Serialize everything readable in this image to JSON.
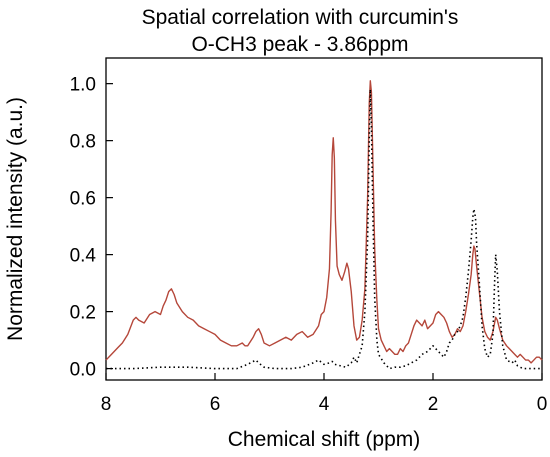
{
  "chart_data": {
    "type": "line",
    "title": [
      "Spatial correlation with curcumin's",
      "O-CH3 peak -  3.86ppm"
    ],
    "xlabel": "Chemical shift (ppm)",
    "ylabel": "Normalized intensity (a.u.)",
    "xlim": [
      8,
      0
    ],
    "ylim": [
      -0.04,
      1.09
    ],
    "x_reversed": true,
    "xticks": [
      8,
      6,
      4,
      2,
      0
    ],
    "xtick_labels": [
      "8",
      "6",
      "4",
      "2",
      "0"
    ],
    "yticks": [
      0.0,
      0.2,
      0.4,
      0.6,
      0.8,
      1.0
    ],
    "ytick_labels": [
      "0.0",
      "0.2",
      "0.4",
      "0.6",
      "0.8",
      "1.0"
    ],
    "grid": false,
    "legend": "none",
    "series": [
      {
        "style": "solid",
        "color": "#b5473a",
        "points": [
          [
            8.0,
            0.03
          ],
          [
            7.9,
            0.05
          ],
          [
            7.8,
            0.07
          ],
          [
            7.7,
            0.09
          ],
          [
            7.6,
            0.12
          ],
          [
            7.5,
            0.17
          ],
          [
            7.45,
            0.18
          ],
          [
            7.4,
            0.17
          ],
          [
            7.3,
            0.16
          ],
          [
            7.2,
            0.19
          ],
          [
            7.1,
            0.2
          ],
          [
            7.0,
            0.19
          ],
          [
            6.95,
            0.22
          ],
          [
            6.9,
            0.24
          ],
          [
            6.85,
            0.27
          ],
          [
            6.8,
            0.28
          ],
          [
            6.75,
            0.26
          ],
          [
            6.7,
            0.23
          ],
          [
            6.6,
            0.2
          ],
          [
            6.5,
            0.18
          ],
          [
            6.4,
            0.17
          ],
          [
            6.3,
            0.15
          ],
          [
            6.2,
            0.14
          ],
          [
            6.1,
            0.13
          ],
          [
            6.0,
            0.12
          ],
          [
            5.9,
            0.1
          ],
          [
            5.8,
            0.09
          ],
          [
            5.7,
            0.08
          ],
          [
            5.6,
            0.08
          ],
          [
            5.5,
            0.09
          ],
          [
            5.45,
            0.08
          ],
          [
            5.4,
            0.08
          ],
          [
            5.3,
            0.11
          ],
          [
            5.25,
            0.13
          ],
          [
            5.2,
            0.14
          ],
          [
            5.15,
            0.12
          ],
          [
            5.1,
            0.09
          ],
          [
            5.0,
            0.08
          ],
          [
            4.9,
            0.09
          ],
          [
            4.8,
            0.1
          ],
          [
            4.7,
            0.11
          ],
          [
            4.6,
            0.1
          ],
          [
            4.5,
            0.12
          ],
          [
            4.4,
            0.13
          ],
          [
            4.3,
            0.11
          ],
          [
            4.2,
            0.12
          ],
          [
            4.1,
            0.15
          ],
          [
            4.05,
            0.19
          ],
          [
            4.0,
            0.2
          ],
          [
            3.95,
            0.25
          ],
          [
            3.9,
            0.35
          ],
          [
            3.87,
            0.55
          ],
          [
            3.85,
            0.75
          ],
          [
            3.83,
            0.81
          ],
          [
            3.81,
            0.74
          ],
          [
            3.79,
            0.52
          ],
          [
            3.76,
            0.36
          ],
          [
            3.72,
            0.33
          ],
          [
            3.67,
            0.31
          ],
          [
            3.62,
            0.34
          ],
          [
            3.58,
            0.37
          ],
          [
            3.55,
            0.35
          ],
          [
            3.5,
            0.27
          ],
          [
            3.45,
            0.15
          ],
          [
            3.4,
            0.1
          ],
          [
            3.35,
            0.11
          ],
          [
            3.3,
            0.17
          ],
          [
            3.25,
            0.28
          ],
          [
            3.2,
            0.6
          ],
          [
            3.17,
            0.93
          ],
          [
            3.15,
            1.01
          ],
          [
            3.13,
            0.97
          ],
          [
            3.1,
            0.7
          ],
          [
            3.07,
            0.42
          ],
          [
            3.03,
            0.24
          ],
          [
            3.0,
            0.14
          ],
          [
            2.95,
            0.1
          ],
          [
            2.9,
            0.08
          ],
          [
            2.85,
            0.06
          ],
          [
            2.8,
            0.07
          ],
          [
            2.75,
            0.06
          ],
          [
            2.7,
            0.05
          ],
          [
            2.65,
            0.05
          ],
          [
            2.6,
            0.07
          ],
          [
            2.55,
            0.06
          ],
          [
            2.5,
            0.08
          ],
          [
            2.45,
            0.09
          ],
          [
            2.4,
            0.12
          ],
          [
            2.35,
            0.15
          ],
          [
            2.3,
            0.17
          ],
          [
            2.25,
            0.16
          ],
          [
            2.2,
            0.15
          ],
          [
            2.15,
            0.17
          ],
          [
            2.1,
            0.14
          ],
          [
            2.05,
            0.15
          ],
          [
            2.0,
            0.16
          ],
          [
            1.95,
            0.19
          ],
          [
            1.9,
            0.2
          ],
          [
            1.85,
            0.19
          ],
          [
            1.8,
            0.18
          ],
          [
            1.75,
            0.16
          ],
          [
            1.7,
            0.13
          ],
          [
            1.65,
            0.11
          ],
          [
            1.6,
            0.12
          ],
          [
            1.55,
            0.14
          ],
          [
            1.5,
            0.13
          ],
          [
            1.45,
            0.15
          ],
          [
            1.4,
            0.2
          ],
          [
            1.35,
            0.26
          ],
          [
            1.3,
            0.33
          ],
          [
            1.27,
            0.4
          ],
          [
            1.25,
            0.43
          ],
          [
            1.23,
            0.42
          ],
          [
            1.2,
            0.36
          ],
          [
            1.15,
            0.27
          ],
          [
            1.1,
            0.18
          ],
          [
            1.05,
            0.13
          ],
          [
            1.0,
            0.11
          ],
          [
            0.95,
            0.1
          ],
          [
            0.9,
            0.13
          ],
          [
            0.85,
            0.18
          ],
          [
            0.82,
            0.17
          ],
          [
            0.78,
            0.14
          ],
          [
            0.72,
            0.1
          ],
          [
            0.65,
            0.08
          ],
          [
            0.6,
            0.07
          ],
          [
            0.55,
            0.06
          ],
          [
            0.5,
            0.05
          ],
          [
            0.45,
            0.04
          ],
          [
            0.4,
            0.05
          ],
          [
            0.35,
            0.04
          ],
          [
            0.3,
            0.03
          ],
          [
            0.25,
            0.03
          ],
          [
            0.2,
            0.02
          ],
          [
            0.15,
            0.03
          ],
          [
            0.1,
            0.04
          ],
          [
            0.05,
            0.04
          ],
          [
            0.0,
            0.03
          ]
        ]
      },
      {
        "style": "dotted",
        "color": "#000000",
        "points": [
          [
            8.0,
            0.0
          ],
          [
            7.5,
            0.0
          ],
          [
            7.0,
            0.005
          ],
          [
            6.5,
            0.005
          ],
          [
            6.0,
            0.0
          ],
          [
            5.6,
            0.0
          ],
          [
            5.4,
            0.015
          ],
          [
            5.3,
            0.025
          ],
          [
            5.25,
            0.03
          ],
          [
            5.2,
            0.02
          ],
          [
            5.1,
            0.005
          ],
          [
            4.9,
            0.0
          ],
          [
            4.6,
            0.0
          ],
          [
            4.4,
            0.005
          ],
          [
            4.2,
            0.02
          ],
          [
            4.1,
            0.03
          ],
          [
            4.0,
            0.015
          ],
          [
            3.9,
            0.02
          ],
          [
            3.85,
            0.025
          ],
          [
            3.8,
            0.015
          ],
          [
            3.6,
            0.005
          ],
          [
            3.5,
            0.02
          ],
          [
            3.45,
            0.04
          ],
          [
            3.4,
            0.02
          ],
          [
            3.3,
            0.08
          ],
          [
            3.25,
            0.2
          ],
          [
            3.2,
            0.45
          ],
          [
            3.17,
            0.8
          ],
          [
            3.15,
            0.98
          ],
          [
            3.13,
            0.85
          ],
          [
            3.1,
            0.52
          ],
          [
            3.07,
            0.25
          ],
          [
            3.03,
            0.1
          ],
          [
            3.0,
            0.05
          ],
          [
            2.9,
            0.02
          ],
          [
            2.8,
            0.0
          ],
          [
            2.7,
            0.005
          ],
          [
            2.6,
            0.005
          ],
          [
            2.5,
            0.01
          ],
          [
            2.4,
            0.02
          ],
          [
            2.3,
            0.03
          ],
          [
            2.2,
            0.05
          ],
          [
            2.1,
            0.06
          ],
          [
            2.0,
            0.08
          ],
          [
            1.95,
            0.07
          ],
          [
            1.9,
            0.06
          ],
          [
            1.85,
            0.05
          ],
          [
            1.8,
            0.04
          ],
          [
            1.75,
            0.06
          ],
          [
            1.7,
            0.09
          ],
          [
            1.65,
            0.1
          ],
          [
            1.6,
            0.12
          ],
          [
            1.55,
            0.13
          ],
          [
            1.5,
            0.15
          ],
          [
            1.45,
            0.18
          ],
          [
            1.4,
            0.25
          ],
          [
            1.35,
            0.34
          ],
          [
            1.3,
            0.45
          ],
          [
            1.27,
            0.53
          ],
          [
            1.25,
            0.56
          ],
          [
            1.22,
            0.53
          ],
          [
            1.2,
            0.44
          ],
          [
            1.15,
            0.3
          ],
          [
            1.1,
            0.15
          ],
          [
            1.05,
            0.07
          ],
          [
            1.0,
            0.04
          ],
          [
            0.95,
            0.05
          ],
          [
            0.9,
            0.12
          ],
          [
            0.87,
            0.3
          ],
          [
            0.85,
            0.4
          ],
          [
            0.82,
            0.34
          ],
          [
            0.78,
            0.2
          ],
          [
            0.72,
            0.08
          ],
          [
            0.65,
            0.03
          ],
          [
            0.55,
            0.02
          ],
          [
            0.5,
            0.03
          ],
          [
            0.45,
            0.01
          ],
          [
            0.35,
            0.0
          ],
          [
            0.2,
            0.0
          ],
          [
            0.1,
            0.0
          ],
          [
            0.0,
            0.0
          ]
        ]
      }
    ]
  }
}
